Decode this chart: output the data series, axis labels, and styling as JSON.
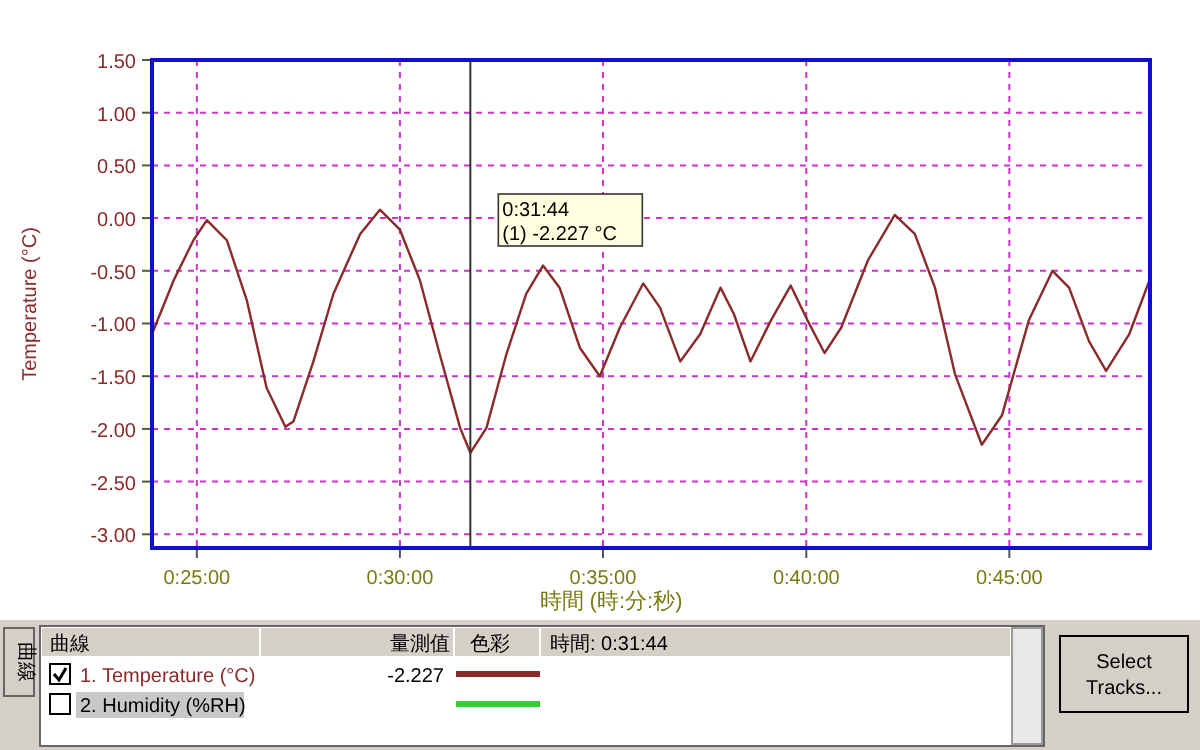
{
  "chart_data": {
    "type": "line",
    "xlabel": "時間 (時:分:秒)",
    "ylabel": "Temperature (°C)",
    "xlim": [
      0.3983,
      0.8077
    ],
    "ylim": [
      -3.13,
      1.5
    ],
    "xticks": [
      {
        "value": 0.4167,
        "label": "0:25:00"
      },
      {
        "value": 0.5,
        "label": "0:30:00"
      },
      {
        "value": 0.5833,
        "label": "0:35:00"
      },
      {
        "value": 0.6667,
        "label": "0:40:00"
      },
      {
        "value": 0.75,
        "label": "0:45:00"
      }
    ],
    "yticks": [
      {
        "value": 1.5,
        "label": "1.50"
      },
      {
        "value": 1.0,
        "label": "1.00"
      },
      {
        "value": 0.5,
        "label": "0.50"
      },
      {
        "value": 0,
        "label": "0.00"
      },
      {
        "value": -0.5,
        "label": "-0.50"
      },
      {
        "value": -1.0,
        "label": "-1.00"
      },
      {
        "value": -1.5,
        "label": "-1.50"
      },
      {
        "value": -2.0,
        "label": "-2.00"
      },
      {
        "value": -2.5,
        "label": "-2.50"
      },
      {
        "value": -3.0,
        "label": "-3.00"
      }
    ],
    "grid": true,
    "legend": "bottom",
    "legend_title": "曲線",
    "series": [
      {
        "name": "1. Temperature (°C)",
        "color": "#8b2a2a",
        "x": [
          0.3983,
          0.4072,
          0.4153,
          0.4208,
          0.429,
          0.4372,
          0.4453,
          0.453,
          0.4563,
          0.4645,
          0.4727,
          0.4837,
          0.4918,
          0.5,
          0.5082,
          0.5163,
          0.5247,
          0.5288889,
          0.5355,
          0.5437,
          0.5518,
          0.5587,
          0.5655,
          0.5738,
          0.582,
          0.5902,
          0.5998,
          0.6067,
          0.615,
          0.6232,
          0.6315,
          0.637,
          0.6438,
          0.6522,
          0.6603,
          0.6672,
          0.6742,
          0.681,
          0.692,
          0.703,
          0.7112,
          0.7195,
          0.7277,
          0.7387,
          0.747,
          0.758,
          0.7677,
          0.7745,
          0.7827,
          0.7897,
          0.7992,
          0.8075
        ],
        "values": [
          -1.1,
          -0.59,
          -0.21,
          -0.02,
          -0.21,
          -0.78,
          -1.61,
          -1.98,
          -1.93,
          -1.36,
          -0.72,
          -0.15,
          0.08,
          -0.11,
          -0.59,
          -1.29,
          -1.99,
          -2.227,
          -1.99,
          -1.29,
          -0.72,
          -0.45,
          -0.66,
          -1.23,
          -1.5,
          -1.04,
          -0.62,
          -0.85,
          -1.36,
          -1.1,
          -0.66,
          -0.91,
          -1.36,
          -0.97,
          -0.64,
          -0.97,
          -1.28,
          -1.04,
          -0.4,
          0.03,
          -0.15,
          -0.66,
          -1.48,
          -2.15,
          -1.87,
          -0.97,
          -0.5,
          -0.66,
          -1.17,
          -1.45,
          -1.1,
          -0.59
        ]
      }
    ],
    "ref_lines": [
      {
        "axis": "x",
        "value": 0.5288889,
        "color": "#333333"
      }
    ],
    "annotations": [
      "0:31:44",
      "(1) -2.227 °C",
      "量測值",
      "色彩",
      "時間: 0:31:44",
      "-2.227",
      "Select Tracks...",
      "曲線",
      "2. Humidity (%RH)"
    ]
  }
}
